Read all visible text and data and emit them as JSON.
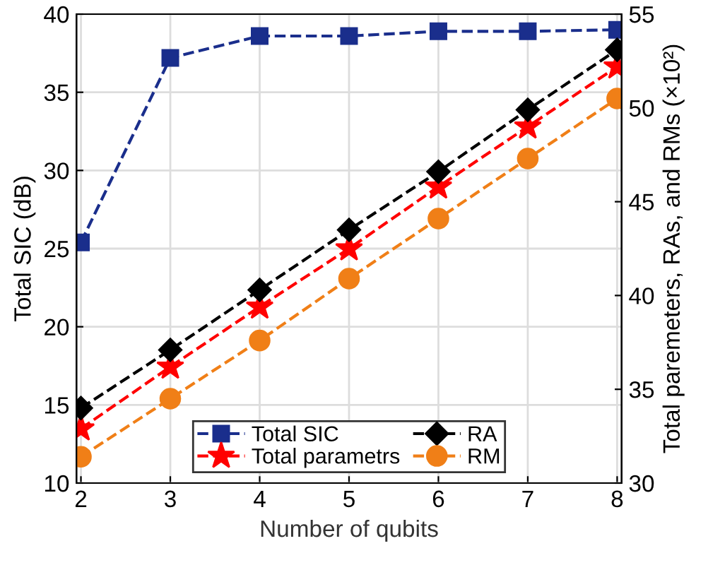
{
  "chart_data": {
    "type": "line",
    "xlabel": "Number of qubits",
    "ylabel": "Total SIC (dB)",
    "y2label": "Total paremeters, RAs, and RMs (×10²)",
    "x": [
      2,
      3,
      4,
      5,
      6,
      7,
      8
    ],
    "series": [
      {
        "name": "Total SIC",
        "color": "#1a2e8c",
        "marker": "square",
        "values": [
          25.4,
          37.2,
          38.6,
          38.6,
          38.9,
          38.9,
          39.0
        ]
      },
      {
        "name": "Total parametrs",
        "color": "#ff0000",
        "marker": "star",
        "axis": "y2",
        "values": [
          32.9,
          36.2,
          39.4,
          42.5,
          45.8,
          49.0,
          52.2
        ]
      },
      {
        "name": "RA",
        "color": "#000000",
        "marker": "diamond",
        "axis": "y2",
        "values": [
          34.0,
          37.1,
          40.3,
          43.5,
          46.6,
          49.9,
          53.1
        ]
      },
      {
        "name": "RM",
        "color": "#f07f17",
        "marker": "circle",
        "axis": "y2",
        "values": [
          31.4,
          34.5,
          37.6,
          40.9,
          44.1,
          47.3,
          50.5
        ]
      }
    ],
    "xlim": [
      1.95,
      8.05
    ],
    "xticks": [
      2,
      3,
      4,
      5,
      6,
      7,
      8
    ],
    "ylim": [
      10,
      40
    ],
    "yticks": [
      10,
      15,
      20,
      25,
      30,
      35,
      40
    ],
    "y2lim": [
      30,
      55
    ],
    "y2ticks": [
      30,
      35,
      40,
      45,
      50,
      55
    ],
    "grid": true,
    "legend": "bottom",
    "line_style": "dashed"
  }
}
